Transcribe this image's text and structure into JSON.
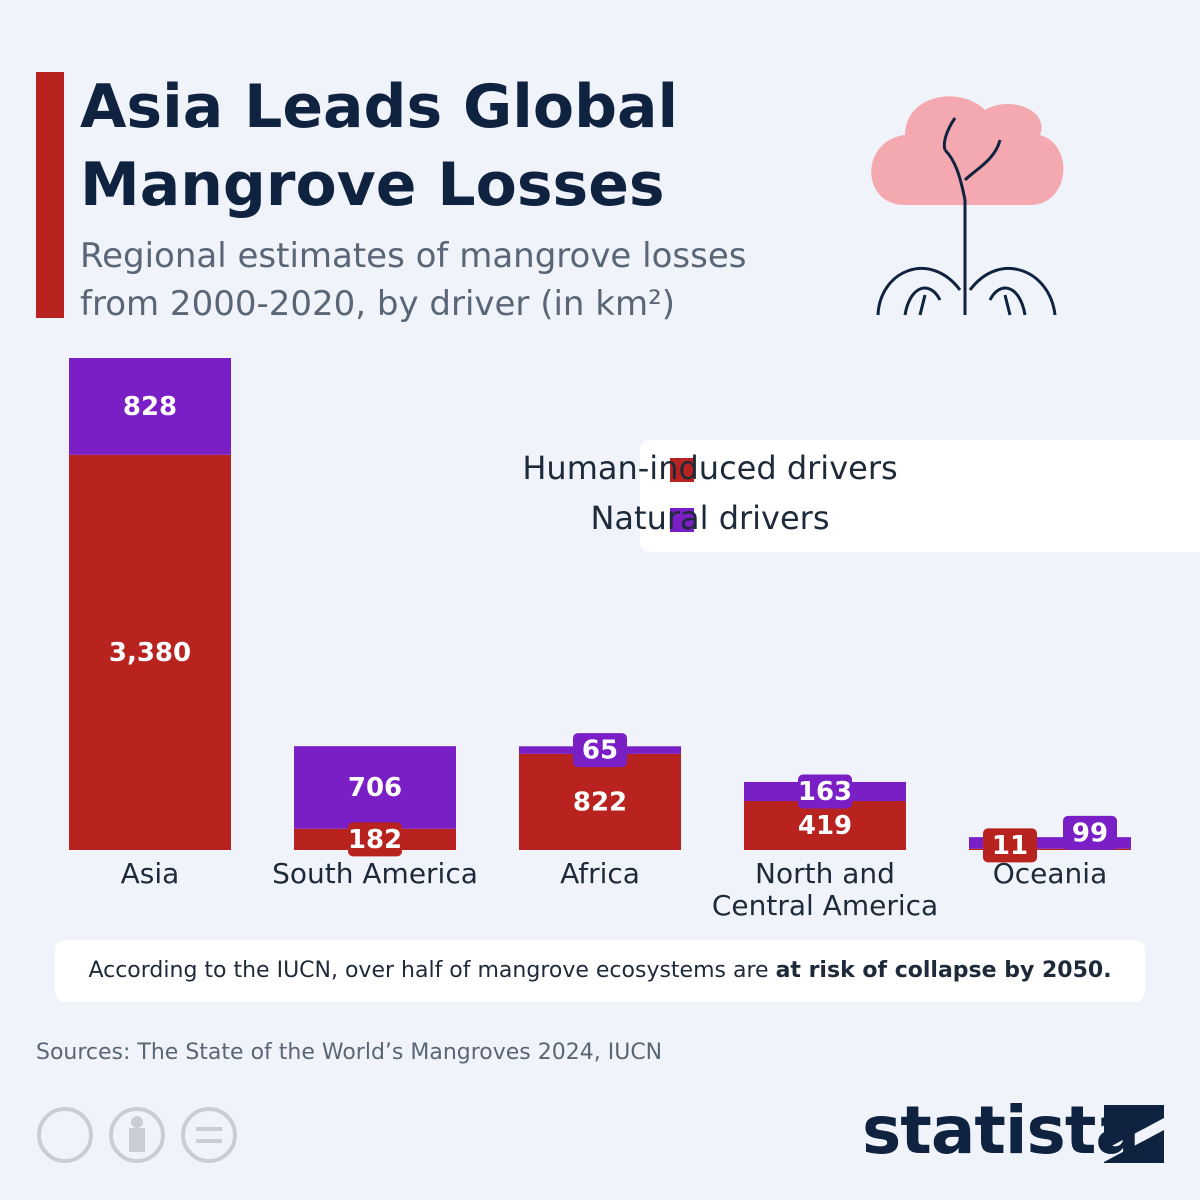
{
  "chart_data": {
    "type": "stacked_bar",
    "title": "Asia Leads Global Mangrove Losses",
    "subtitle": "Regional estimates of mangrove losses from 2000-2020, by driver (in km²)",
    "categories": [
      "Asia",
      "South America",
      "Africa",
      "North and Central America",
      "Oceania"
    ],
    "series": [
      {
        "name": "Human-induced drivers",
        "color": "#b8231f",
        "values": [
          3380,
          182,
          822,
          419,
          11
        ],
        "value_labels": [
          "3,380",
          "182",
          "822",
          "419",
          "11"
        ]
      },
      {
        "name": "Natural drivers",
        "color": "#7a1fc6",
        "values": [
          828,
          706,
          65,
          163,
          99
        ]
      }
    ],
    "legend": "top-right",
    "note_text": "According to the IUCN, over half of mangrove ecosystems are",
    "note_bold": "at risk of collapse by 2050.",
    "source": "Sources: The State of the World’s Mangroves 2024, IUCN",
    "brand": "statista"
  }
}
